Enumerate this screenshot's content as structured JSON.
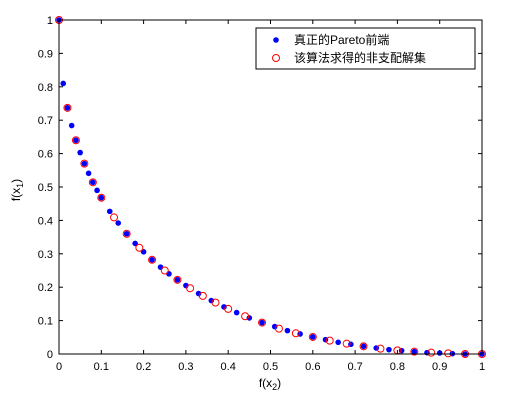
{
  "chart_data": {
    "type": "scatter",
    "title": "",
    "xlabel": "f(x2)",
    "ylabel": "f(x1)",
    "xlabel_parts": {
      "base": "f(x",
      "sub": "2",
      "close": ")"
    },
    "ylabel_parts": {
      "base": "f(x",
      "sub": "1",
      "close": ")"
    },
    "xlim": [
      0,
      1
    ],
    "ylim": [
      0,
      1
    ],
    "xticks": [
      0,
      0.1,
      0.2,
      0.3,
      0.4,
      0.5,
      0.6,
      0.7,
      0.8,
      0.9,
      1
    ],
    "yticks": [
      0,
      0.1,
      0.2,
      0.3,
      0.4,
      0.5,
      0.6,
      0.7,
      0.8,
      0.9,
      1
    ],
    "xtick_labels": [
      "0",
      "0.1",
      "0.2",
      "0.3",
      "0.4",
      "0.5",
      "0.6",
      "0.7",
      "0.8",
      "0.9",
      "1"
    ],
    "ytick_labels": [
      "0",
      "0.1",
      "0.2",
      "0.3",
      "0.4",
      "0.5",
      "0.6",
      "0.7",
      "0.8",
      "0.9",
      "1"
    ],
    "grid": false,
    "legend_position": "top-right",
    "series": [
      {
        "name": "真正的Pareto前端",
        "marker": "filled-dot",
        "color": "#0000ff",
        "relation": "f1 = (1 - sqrt(f2))^2",
        "x": [
          0,
          0.01,
          0.02,
          0.03,
          0.04,
          0.05,
          0.06,
          0.07,
          0.08,
          0.09,
          0.1,
          0.12,
          0.14,
          0.16,
          0.18,
          0.2,
          0.22,
          0.24,
          0.26,
          0.28,
          0.3,
          0.33,
          0.36,
          0.39,
          0.42,
          0.45,
          0.48,
          0.51,
          0.54,
          0.57,
          0.6,
          0.63,
          0.66,
          0.69,
          0.72,
          0.75,
          0.78,
          0.81,
          0.84,
          0.87,
          0.9,
          0.93,
          0.96,
          1.0
        ],
        "y": [
          1.0,
          0.81,
          0.737,
          0.684,
          0.64,
          0.603,
          0.57,
          0.541,
          0.514,
          0.49,
          0.468,
          0.427,
          0.392,
          0.36,
          0.331,
          0.306,
          0.282,
          0.26,
          0.24,
          0.222,
          0.205,
          0.181,
          0.16,
          0.141,
          0.124,
          0.108,
          0.094,
          0.082,
          0.07,
          0.06,
          0.051,
          0.043,
          0.035,
          0.029,
          0.023,
          0.018,
          0.013,
          0.01,
          0.007,
          0.004,
          0.003,
          0.001,
          0.0,
          0.0
        ]
      },
      {
        "name": "该算法求得的非支配解集",
        "marker": "open-circle",
        "color": "#ff0000",
        "relation": "f1 = (1 - sqrt(f2))^2",
        "x": [
          0,
          0.02,
          0.04,
          0.06,
          0.08,
          0.1,
          0.13,
          0.16,
          0.19,
          0.22,
          0.25,
          0.28,
          0.31,
          0.34,
          0.37,
          0.4,
          0.44,
          0.48,
          0.52,
          0.56,
          0.6,
          0.64,
          0.68,
          0.72,
          0.76,
          0.8,
          0.84,
          0.88,
          0.92,
          0.96,
          1.0
        ],
        "y": [
          1.0,
          0.737,
          0.64,
          0.57,
          0.514,
          0.468,
          0.409,
          0.36,
          0.318,
          0.282,
          0.25,
          0.222,
          0.197,
          0.174,
          0.154,
          0.135,
          0.113,
          0.094,
          0.076,
          0.062,
          0.051,
          0.04,
          0.031,
          0.023,
          0.016,
          0.011,
          0.007,
          0.004,
          0.002,
          0.0,
          0.0
        ]
      }
    ]
  }
}
